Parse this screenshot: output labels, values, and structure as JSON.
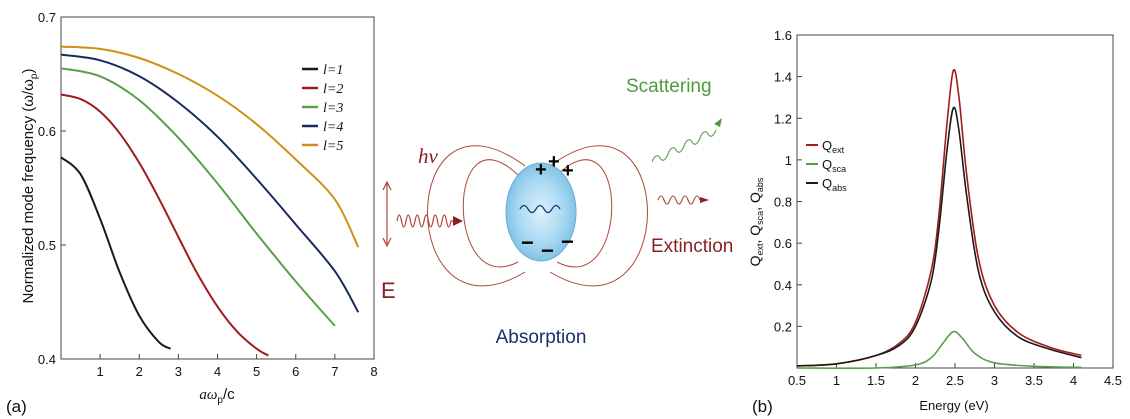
{
  "panel_a": {
    "label": "(a)",
    "chart_data": {
      "type": "line",
      "xlabel_main": "aω",
      "xlabel_sub": "p",
      "xlabel_tail": "/c",
      "ylabel": "Normalized mode frequency (ω/ω",
      "ylabel_sub": "p",
      "ylabel_tail": ")",
      "xlim": [
        0,
        8
      ],
      "ylim": [
        0.4,
        0.7
      ],
      "xticks": [
        "1",
        "2",
        "3",
        "4",
        "5",
        "6",
        "7",
        "8"
      ],
      "yticks": [
        "0.4",
        "0.5",
        "0.6",
        "0.7"
      ],
      "legend_position": "top-right",
      "series": [
        {
          "name": "l=1",
          "color": "#1a1a1a",
          "x": [
            0,
            0.5,
            1.0,
            1.5,
            2.0,
            2.5,
            2.8
          ],
          "values": [
            0.577,
            0.562,
            0.523,
            0.476,
            0.438,
            0.415,
            0.409
          ]
        },
        {
          "name": "l=2",
          "color": "#a01b1b",
          "x": [
            0,
            0.5,
            1.0,
            1.5,
            2.0,
            2.5,
            3.0,
            3.5,
            4.0,
            4.5,
            5.0,
            5.3
          ],
          "values": [
            0.632,
            0.628,
            0.617,
            0.598,
            0.572,
            0.541,
            0.507,
            0.474,
            0.446,
            0.424,
            0.409,
            0.403
          ]
        },
        {
          "name": "l=3",
          "color": "#5a9e4a",
          "x": [
            0,
            1,
            2,
            3,
            4,
            5,
            6,
            7
          ],
          "values": [
            0.655,
            0.648,
            0.627,
            0.594,
            0.554,
            0.51,
            0.468,
            0.429
          ]
        },
        {
          "name": "l=4",
          "color": "#1a2a5e",
          "x": [
            0,
            1,
            2,
            3,
            4,
            5,
            6,
            7,
            7.6
          ],
          "values": [
            0.667,
            0.662,
            0.648,
            0.625,
            0.595,
            0.558,
            0.518,
            0.477,
            0.441
          ]
        },
        {
          "name": "l=5",
          "color": "#d18f14",
          "x": [
            0,
            1,
            2,
            3,
            4,
            5,
            6,
            7,
            7.6
          ],
          "values": [
            0.674,
            0.672,
            0.664,
            0.65,
            0.631,
            0.606,
            0.575,
            0.54,
            0.498
          ]
        }
      ]
    }
  },
  "diagram": {
    "hv": "hν",
    "e_label": "E",
    "scattering": "Scattering",
    "extinction": "Extinction",
    "absorption": "Absorption",
    "plus": "+",
    "minus": "−"
  },
  "panel_b": {
    "label": "(b)",
    "chart_data": {
      "type": "line",
      "xlabel": "Energy (eV)",
      "ylabel_parts": [
        "Q",
        "ext",
        ", Q",
        "sca",
        ", Q",
        "abs"
      ],
      "xlim": [
        0.5,
        4.5
      ],
      "ylim": [
        0,
        1.6
      ],
      "xticks": [
        "0.5",
        "1",
        "1.5",
        "2",
        "2.5",
        "3",
        "3.5",
        "4",
        "4.5"
      ],
      "yticks": [
        "0.2",
        "0.4",
        "0.6",
        "0.8",
        "1",
        "1.2",
        "1.4",
        "1.6"
      ],
      "legend_position": "top-left",
      "series": [
        {
          "name": "Q",
          "sub": "ext",
          "color": "#a01b1b",
          "x": [
            0.5,
            1.0,
            1.5,
            1.8,
            2.0,
            2.2,
            2.3,
            2.4,
            2.48,
            2.55,
            2.65,
            2.8,
            3.0,
            3.3,
            3.7,
            4.1
          ],
          "values": [
            0.01,
            0.02,
            0.06,
            0.12,
            0.22,
            0.47,
            0.75,
            1.18,
            1.43,
            1.3,
            0.92,
            0.52,
            0.3,
            0.17,
            0.1,
            0.06
          ]
        },
        {
          "name": "Q",
          "sub": "sca",
          "color": "#5a9e4a",
          "x": [
            0.5,
            1.5,
            2.0,
            2.2,
            2.35,
            2.48,
            2.6,
            2.75,
            3.0,
            3.5,
            4.1
          ],
          "values": [
            0.0,
            0.0,
            0.015,
            0.05,
            0.12,
            0.175,
            0.14,
            0.07,
            0.025,
            0.008,
            0.003
          ]
        },
        {
          "name": "Q",
          "sub": "abs",
          "color": "#1a1a1a",
          "x": [
            0.5,
            1.0,
            1.5,
            1.8,
            2.0,
            2.2,
            2.3,
            2.4,
            2.48,
            2.55,
            2.65,
            2.8,
            3.0,
            3.3,
            3.7,
            4.1
          ],
          "values": [
            0.01,
            0.02,
            0.06,
            0.11,
            0.2,
            0.42,
            0.68,
            1.05,
            1.25,
            1.14,
            0.82,
            0.46,
            0.27,
            0.15,
            0.09,
            0.05
          ]
        }
      ]
    }
  }
}
